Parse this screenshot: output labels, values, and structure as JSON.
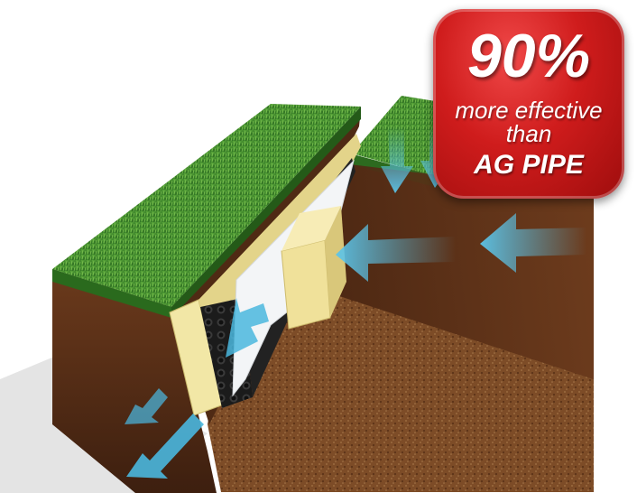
{
  "badge": {
    "headline": "90%",
    "line1": "more effective",
    "line2": "than",
    "line3": "AG PIPE"
  },
  "colors": {
    "grass": "#3f8a2c",
    "soil_side": "#5a2f18",
    "soil_top": "#7a4a26",
    "geotextile": "#f2e7a6",
    "drain_core": "#1d1d1d",
    "membrane": "#f2f4f6",
    "water_arrow": "#4ab7de",
    "badge_red": "#cf1c1c"
  },
  "icons": [
    "water-flow-arrow-icon"
  ]
}
